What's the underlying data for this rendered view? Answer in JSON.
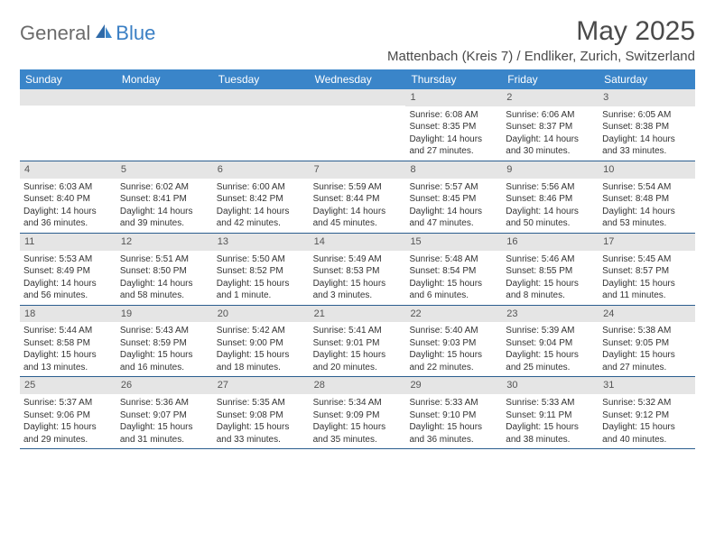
{
  "logo": {
    "general": "General",
    "blue": "Blue"
  },
  "title": "May 2025",
  "location": "Mattenbach (Kreis 7) / Endliker, Zurich, Switzerland",
  "weekdays": [
    "Sunday",
    "Monday",
    "Tuesday",
    "Wednesday",
    "Thursday",
    "Friday",
    "Saturday"
  ],
  "colors": {
    "header_bar": "#3a85c9",
    "row_divider": "#2b5e8f",
    "daynum_bg": "#e5e5e5",
    "text": "#333333",
    "logo_gray": "#6b6b6b",
    "logo_blue": "#3a7fc4"
  },
  "weeks": [
    [
      {
        "n": "",
        "sunrise": "",
        "sunset": "",
        "daylight": ""
      },
      {
        "n": "",
        "sunrise": "",
        "sunset": "",
        "daylight": ""
      },
      {
        "n": "",
        "sunrise": "",
        "sunset": "",
        "daylight": ""
      },
      {
        "n": "",
        "sunrise": "",
        "sunset": "",
        "daylight": ""
      },
      {
        "n": "1",
        "sunrise": "Sunrise: 6:08 AM",
        "sunset": "Sunset: 8:35 PM",
        "daylight": "Daylight: 14 hours and 27 minutes."
      },
      {
        "n": "2",
        "sunrise": "Sunrise: 6:06 AM",
        "sunset": "Sunset: 8:37 PM",
        "daylight": "Daylight: 14 hours and 30 minutes."
      },
      {
        "n": "3",
        "sunrise": "Sunrise: 6:05 AM",
        "sunset": "Sunset: 8:38 PM",
        "daylight": "Daylight: 14 hours and 33 minutes."
      }
    ],
    [
      {
        "n": "4",
        "sunrise": "Sunrise: 6:03 AM",
        "sunset": "Sunset: 8:40 PM",
        "daylight": "Daylight: 14 hours and 36 minutes."
      },
      {
        "n": "5",
        "sunrise": "Sunrise: 6:02 AM",
        "sunset": "Sunset: 8:41 PM",
        "daylight": "Daylight: 14 hours and 39 minutes."
      },
      {
        "n": "6",
        "sunrise": "Sunrise: 6:00 AM",
        "sunset": "Sunset: 8:42 PM",
        "daylight": "Daylight: 14 hours and 42 minutes."
      },
      {
        "n": "7",
        "sunrise": "Sunrise: 5:59 AM",
        "sunset": "Sunset: 8:44 PM",
        "daylight": "Daylight: 14 hours and 45 minutes."
      },
      {
        "n": "8",
        "sunrise": "Sunrise: 5:57 AM",
        "sunset": "Sunset: 8:45 PM",
        "daylight": "Daylight: 14 hours and 47 minutes."
      },
      {
        "n": "9",
        "sunrise": "Sunrise: 5:56 AM",
        "sunset": "Sunset: 8:46 PM",
        "daylight": "Daylight: 14 hours and 50 minutes."
      },
      {
        "n": "10",
        "sunrise": "Sunrise: 5:54 AM",
        "sunset": "Sunset: 8:48 PM",
        "daylight": "Daylight: 14 hours and 53 minutes."
      }
    ],
    [
      {
        "n": "11",
        "sunrise": "Sunrise: 5:53 AM",
        "sunset": "Sunset: 8:49 PM",
        "daylight": "Daylight: 14 hours and 56 minutes."
      },
      {
        "n": "12",
        "sunrise": "Sunrise: 5:51 AM",
        "sunset": "Sunset: 8:50 PM",
        "daylight": "Daylight: 14 hours and 58 minutes."
      },
      {
        "n": "13",
        "sunrise": "Sunrise: 5:50 AM",
        "sunset": "Sunset: 8:52 PM",
        "daylight": "Daylight: 15 hours and 1 minute."
      },
      {
        "n": "14",
        "sunrise": "Sunrise: 5:49 AM",
        "sunset": "Sunset: 8:53 PM",
        "daylight": "Daylight: 15 hours and 3 minutes."
      },
      {
        "n": "15",
        "sunrise": "Sunrise: 5:48 AM",
        "sunset": "Sunset: 8:54 PM",
        "daylight": "Daylight: 15 hours and 6 minutes."
      },
      {
        "n": "16",
        "sunrise": "Sunrise: 5:46 AM",
        "sunset": "Sunset: 8:55 PM",
        "daylight": "Daylight: 15 hours and 8 minutes."
      },
      {
        "n": "17",
        "sunrise": "Sunrise: 5:45 AM",
        "sunset": "Sunset: 8:57 PM",
        "daylight": "Daylight: 15 hours and 11 minutes."
      }
    ],
    [
      {
        "n": "18",
        "sunrise": "Sunrise: 5:44 AM",
        "sunset": "Sunset: 8:58 PM",
        "daylight": "Daylight: 15 hours and 13 minutes."
      },
      {
        "n": "19",
        "sunrise": "Sunrise: 5:43 AM",
        "sunset": "Sunset: 8:59 PM",
        "daylight": "Daylight: 15 hours and 16 minutes."
      },
      {
        "n": "20",
        "sunrise": "Sunrise: 5:42 AM",
        "sunset": "Sunset: 9:00 PM",
        "daylight": "Daylight: 15 hours and 18 minutes."
      },
      {
        "n": "21",
        "sunrise": "Sunrise: 5:41 AM",
        "sunset": "Sunset: 9:01 PM",
        "daylight": "Daylight: 15 hours and 20 minutes."
      },
      {
        "n": "22",
        "sunrise": "Sunrise: 5:40 AM",
        "sunset": "Sunset: 9:03 PM",
        "daylight": "Daylight: 15 hours and 22 minutes."
      },
      {
        "n": "23",
        "sunrise": "Sunrise: 5:39 AM",
        "sunset": "Sunset: 9:04 PM",
        "daylight": "Daylight: 15 hours and 25 minutes."
      },
      {
        "n": "24",
        "sunrise": "Sunrise: 5:38 AM",
        "sunset": "Sunset: 9:05 PM",
        "daylight": "Daylight: 15 hours and 27 minutes."
      }
    ],
    [
      {
        "n": "25",
        "sunrise": "Sunrise: 5:37 AM",
        "sunset": "Sunset: 9:06 PM",
        "daylight": "Daylight: 15 hours and 29 minutes."
      },
      {
        "n": "26",
        "sunrise": "Sunrise: 5:36 AM",
        "sunset": "Sunset: 9:07 PM",
        "daylight": "Daylight: 15 hours and 31 minutes."
      },
      {
        "n": "27",
        "sunrise": "Sunrise: 5:35 AM",
        "sunset": "Sunset: 9:08 PM",
        "daylight": "Daylight: 15 hours and 33 minutes."
      },
      {
        "n": "28",
        "sunrise": "Sunrise: 5:34 AM",
        "sunset": "Sunset: 9:09 PM",
        "daylight": "Daylight: 15 hours and 35 minutes."
      },
      {
        "n": "29",
        "sunrise": "Sunrise: 5:33 AM",
        "sunset": "Sunset: 9:10 PM",
        "daylight": "Daylight: 15 hours and 36 minutes."
      },
      {
        "n": "30",
        "sunrise": "Sunrise: 5:33 AM",
        "sunset": "Sunset: 9:11 PM",
        "daylight": "Daylight: 15 hours and 38 minutes."
      },
      {
        "n": "31",
        "sunrise": "Sunrise: 5:32 AM",
        "sunset": "Sunset: 9:12 PM",
        "daylight": "Daylight: 15 hours and 40 minutes."
      }
    ]
  ]
}
